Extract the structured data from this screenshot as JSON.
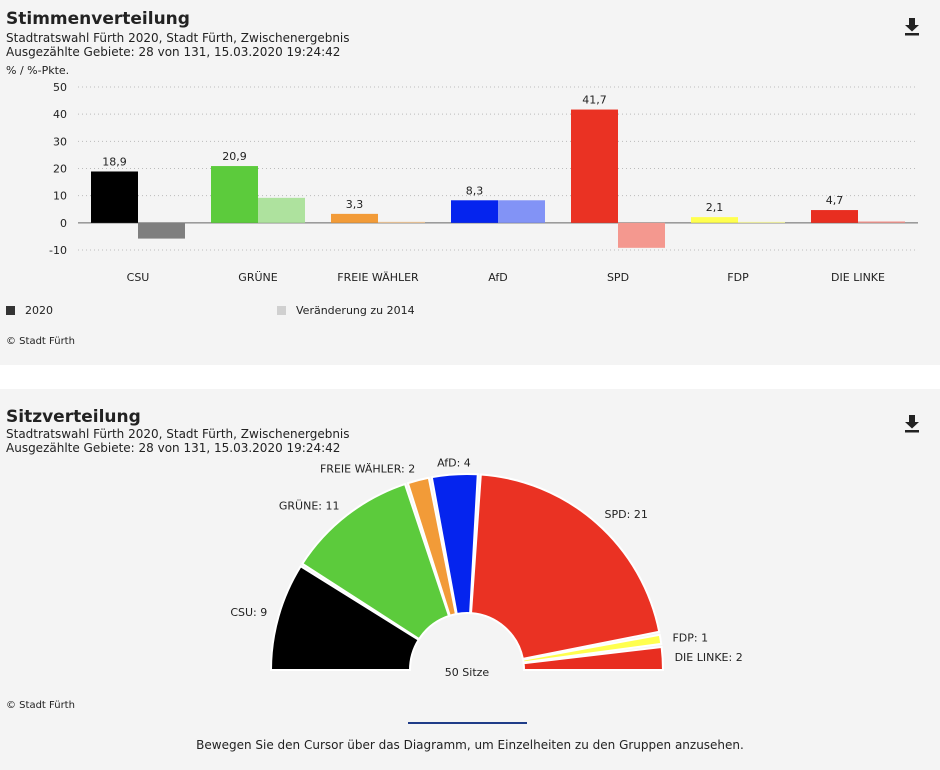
{
  "votes_panel": {
    "title": "Stimmenverteilung",
    "subtitle1": "Stadtratswahl Fürth 2020, Stadt Fürth, Zwischenergebnis",
    "subtitle2": "Ausgezählte Gebiete: 28 von 131, 15.03.2020 19:24:42",
    "unit": "% / %-Pkte.",
    "legend": [
      "2020",
      "Veränderung zu 2014"
    ],
    "credit": "© Stadt Fürth",
    "download_icon": "download-icon"
  },
  "seats_panel": {
    "title": "Sitzverteilung",
    "subtitle1": "Stadtratswahl Fürth 2020, Stadt Fürth, Zwischenergebnis",
    "subtitle2": "Ausgezählte Gebiete: 28 von 131, 15.03.2020 19:24:42",
    "total_label": "50 Sitze",
    "credit": "© Stadt Fürth",
    "hint": "Bewegen Sie den Cursor über das Diagramm, um Einzelheiten zu den Gruppen anzusehen.",
    "download_icon": "download-icon"
  },
  "chart_data": [
    {
      "type": "bar",
      "title": "Stimmenverteilung",
      "categories": [
        "CSU",
        "GRÜNE",
        "FREIE WÄHLER",
        "AfD",
        "SPD",
        "FDP",
        "DIE LINKE"
      ],
      "series": [
        {
          "name": "2020",
          "values": [
            18.9,
            20.9,
            3.3,
            8.3,
            41.7,
            2.1,
            4.7
          ],
          "labels": [
            "18,9",
            "20,9",
            "3,3",
            "8,3",
            "41,7",
            "2,1",
            "4,7"
          ],
          "colors": [
            "#000000",
            "#5ccb3c",
            "#f29b38",
            "#0524ee",
            "#ea3223",
            "#ffff4f",
            "#e82e20"
          ]
        },
        {
          "name": "Veränderung zu 2014",
          "values": [
            -5.8,
            9.2,
            0,
            8.3,
            -9.2,
            0,
            0.5
          ],
          "colors": [
            "#7f7f7f",
            "#aee29e",
            "#f8cd9b",
            "#8293f6",
            "#f4988f",
            "#ffffa7",
            "#f39690"
          ]
        }
      ],
      "legend_colors": [
        "#333333",
        "#d0d0d0"
      ],
      "ylabel": "% / %-Pkte.",
      "ylim": [
        -10,
        50
      ],
      "yticks": [
        -10,
        0,
        10,
        20,
        30,
        40,
        50
      ],
      "grid": true
    },
    {
      "type": "pie",
      "title": "Sitzverteilung",
      "categories": [
        "CSU",
        "GRÜNE",
        "FREIE WÄHLER",
        "AfD",
        "SPD",
        "FDP",
        "DIE LINKE"
      ],
      "values": [
        9,
        11,
        2,
        4,
        21,
        1,
        2
      ],
      "labels": [
        "CSU: 9",
        "GRÜNE: 11",
        "FREIE WÄHLER: 2",
        "AfD: 4",
        "SPD: 21",
        "FDP: 1",
        "DIE LINKE: 2"
      ],
      "colors": [
        "#000000",
        "#5ccb3c",
        "#f29b38",
        "#0524ee",
        "#ea3223",
        "#ffff4f",
        "#e82e20"
      ],
      "total": 50
    }
  ]
}
